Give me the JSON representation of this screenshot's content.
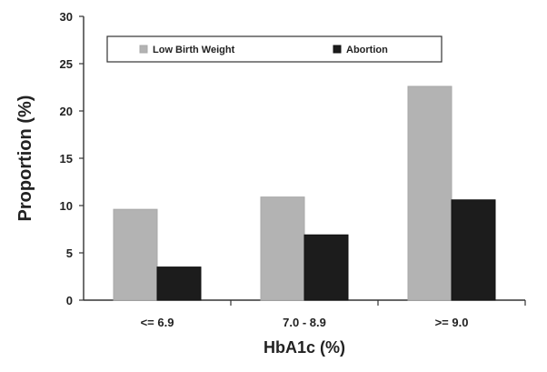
{
  "chart_data": {
    "type": "bar",
    "title": "",
    "xlabel": "HbA1c (%)",
    "ylabel": "Proportion (%)",
    "categories": [
      "<= 6.9",
      "7.0 - 8.9",
      ">= 9.0"
    ],
    "series": [
      {
        "name": "Low Birth Weight",
        "values": [
          9.6,
          10.9,
          22.6
        ],
        "color": "#b3b3b3"
      },
      {
        "name": "Abortion",
        "values": [
          3.5,
          6.9,
          10.6
        ],
        "color": "#1c1c1c"
      }
    ],
    "ylim": [
      0,
      30
    ],
    "yticks": [
      0,
      5,
      10,
      15,
      20,
      25,
      30
    ],
    "grid": false,
    "legend_position": "top-left"
  }
}
